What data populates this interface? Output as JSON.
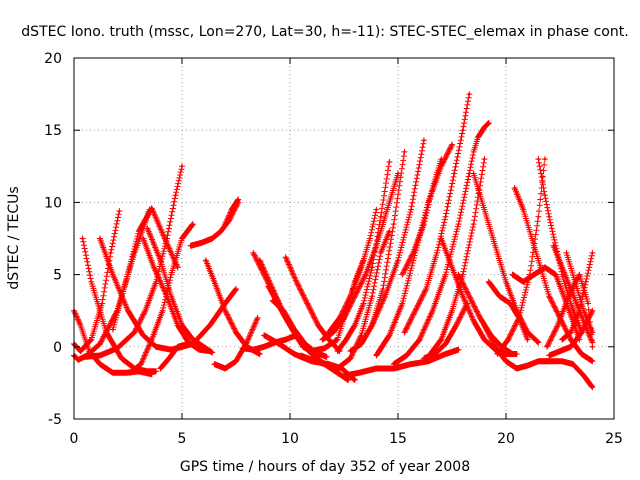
{
  "chart_data": {
    "type": "scatter",
    "title": "dSTEC Iono. truth (mssc, Lon=270, Lat=30, h=-11): STEC-STEC_elemax in phase cont.",
    "xlabel": "GPS time / hours of day 352 of year 2008",
    "ylabel": "dSTEC  / TECUs",
    "xlim": [
      0,
      25
    ],
    "ylim": [
      -5,
      20
    ],
    "xticks": [
      "0",
      "5",
      "10",
      "15",
      "20",
      "25"
    ],
    "yticks": [
      "-5",
      "0",
      "5",
      "10",
      "15",
      "20"
    ],
    "grid": true,
    "marker": "+",
    "color": "#ff0000",
    "series": [
      {
        "x": [
          0.0,
          0.2,
          0.6,
          1.2,
          2.0,
          2.8,
          3.5
        ],
        "y": [
          -0.6,
          -0.9,
          -0.6,
          0.2,
          2.5,
          6.5,
          9.5
        ]
      },
      {
        "x": [
          0.0,
          0.3,
          0.8,
          1.3,
          1.7,
          2.1
        ],
        "y": [
          0.2,
          -0.3,
          0.5,
          3.0,
          6.5,
          9.4
        ]
      },
      {
        "x": [
          0.0,
          0.3,
          0.7,
          1.2,
          1.8,
          2.4,
          3.0,
          3.6
        ],
        "y": [
          2.5,
          1.5,
          -0.3,
          -1.2,
          -1.8,
          -1.8,
          -1.7,
          -1.9
        ]
      },
      {
        "x": [
          0.4,
          0.8,
          1.5,
          2.2,
          2.8,
          3.4,
          3.8
        ],
        "y": [
          7.5,
          4.5,
          1.0,
          -0.8,
          -1.5,
          -1.7,
          -1.7
        ]
      },
      {
        "x": [
          0.5,
          1.2,
          2.0,
          2.8,
          3.3,
          3.8,
          4.3,
          4.7,
          5.0
        ],
        "y": [
          -0.7,
          -0.6,
          -0.1,
          1.0,
          2.5,
          4.5,
          7.5,
          10.5,
          12.5
        ]
      },
      {
        "x": [
          1.2,
          1.8,
          2.5,
          3.2,
          3.8,
          4.5,
          5.5,
          6.3,
          7.0,
          7.5
        ],
        "y": [
          7.5,
          5.0,
          2.5,
          0.8,
          0.0,
          -0.2,
          0.2,
          1.5,
          3.0,
          4.0
        ]
      },
      {
        "x": [
          1.8,
          2.4,
          3.0,
          3.6,
          4.2,
          4.8
        ],
        "y": [
          1.2,
          4.5,
          8.0,
          9.6,
          7.5,
          5.5
        ]
      },
      {
        "x": [
          2.6,
          3.1,
          3.6,
          4.1,
          4.5,
          5.0,
          5.5
        ],
        "y": [
          -1.8,
          -1.2,
          0.5,
          2.5,
          5.0,
          7.5,
          8.5
        ]
      },
      {
        "x": [
          3.2,
          3.7,
          4.3,
          4.8,
          5.3,
          5.8,
          6.3
        ],
        "y": [
          7.5,
          5.5,
          3.5,
          1.5,
          0.3,
          -0.2,
          -0.3
        ]
      },
      {
        "x": [
          4.0,
          4.4,
          4.8,
          5.3
        ],
        "y": [
          -1.5,
          -0.8,
          0.0,
          0.2
        ]
      },
      {
        "x": [
          3.4,
          4.0,
          4.5,
          5.0,
          5.5,
          6.0,
          6.4
        ],
        "y": [
          8.2,
          6.0,
          3.5,
          1.5,
          0.5,
          0.0,
          -0.4
        ]
      },
      {
        "x": [
          6.1,
          6.5,
          7.0,
          7.5,
          8.0,
          8.6
        ],
        "y": [
          6.0,
          4.5,
          2.5,
          1.0,
          0.0,
          -0.5
        ]
      },
      {
        "x": [
          6.5,
          7.0,
          7.5,
          8.0,
          8.5
        ],
        "y": [
          -1.2,
          -1.5,
          -1.0,
          0.3,
          2.0
        ]
      },
      {
        "x": [
          7.0,
          7.3,
          7.6
        ],
        "y": [
          8.5,
          9.5,
          10.2
        ]
      },
      {
        "x": [
          5.4,
          5.9,
          6.4,
          6.8,
          7.2,
          7.6
        ],
        "y": [
          7.0,
          7.2,
          7.5,
          8.0,
          8.8,
          10.0
        ]
      },
      {
        "x": [
          8.3,
          8.8,
          9.3,
          9.8,
          10.3,
          10.8
        ],
        "y": [
          6.5,
          5.0,
          3.5,
          2.0,
          0.8,
          0.0
        ]
      },
      {
        "x": [
          8.6,
          9.2,
          9.8,
          10.4,
          11.0,
          11.6,
          12.2,
          12.7
        ],
        "y": [
          6.0,
          4.0,
          2.0,
          0.5,
          -0.5,
          -1.2,
          -1.8,
          -2.3
        ]
      },
      {
        "x": [
          9.0,
          9.5,
          10.0,
          10.6,
          11.2
        ],
        "y": [
          4.2,
          2.8,
          1.5,
          0.0,
          -0.5
        ]
      },
      {
        "x": [
          7.8,
          8.3,
          8.8,
          9.3,
          9.8,
          10.3
        ],
        "y": [
          -0.1,
          -0.2,
          0.0,
          0.3,
          0.5,
          0.8
        ]
      },
      {
        "x": [
          8.8,
          9.5,
          10.2,
          11.0,
          11.8,
          12.4,
          13.0
        ],
        "y": [
          0.8,
          0.2,
          -0.5,
          -1.0,
          -1.2,
          -1.5,
          -2.3
        ]
      },
      {
        "x": [
          9.2,
          9.7,
          10.2,
          10.7,
          11.2,
          11.7
        ],
        "y": [
          3.2,
          2.5,
          1.2,
          0.2,
          -0.4,
          -0.7
        ]
      },
      {
        "x": [
          9.8,
          10.3,
          10.8,
          11.3,
          11.8,
          12.3
        ],
        "y": [
          6.2,
          4.5,
          3.0,
          1.5,
          0.5,
          -0.3
        ]
      },
      {
        "x": [
          10.5,
          11.0,
          11.6,
          12.2,
          12.8,
          13.3,
          13.8,
          14.2,
          14.6
        ],
        "y": [
          -0.6,
          -0.9,
          -1.2,
          -1.5,
          -0.8,
          0.8,
          3.5,
          6.5,
          8.0
        ]
      },
      {
        "x": [
          11.0,
          11.6,
          12.2,
          12.6,
          13.0,
          13.4
        ],
        "y": [
          -0.3,
          -0.1,
          0.5,
          2.5,
          4.5,
          6.0
        ]
      },
      {
        "x": [
          12.2,
          12.6,
          13.0,
          13.4,
          13.8,
          14.2,
          14.6
        ],
        "y": [
          -0.3,
          0.5,
          1.5,
          3.0,
          5.5,
          9.0,
          12.8
        ]
      },
      {
        "x": [
          11.8,
          12.3,
          12.8,
          13.3,
          13.7,
          14.0
        ],
        "y": [
          1.0,
          2.0,
          3.5,
          5.5,
          7.5,
          9.5
        ]
      },
      {
        "x": [
          11.5,
          12.0,
          12.5,
          13.0,
          13.5,
          14.0,
          14.5,
          15.0
        ],
        "y": [
          0.5,
          1.0,
          2.0,
          3.5,
          5.0,
          7.0,
          9.5,
          12.0
        ]
      },
      {
        "x": [
          12.8,
          13.3,
          13.8,
          14.3,
          14.8,
          15.3
        ],
        "y": [
          -0.3,
          0.2,
          1.5,
          4.0,
          8.5,
          13.5
        ]
      },
      {
        "x": [
          12.5,
          13.2,
          14.0,
          14.8,
          15.6,
          16.4,
          17.2,
          17.8
        ],
        "y": [
          -2.0,
          -1.8,
          -1.5,
          -1.5,
          -1.2,
          -1.0,
          -0.5,
          -0.2
        ]
      },
      {
        "x": [
          13.8,
          14.4,
          15.0,
          15.6,
          16.2
        ],
        "y": [
          1.5,
          3.5,
          6.0,
          9.5,
          14.3
        ]
      },
      {
        "x": [
          14.0,
          14.6,
          15.2,
          15.8,
          16.4,
          17.0,
          17.5
        ],
        "y": [
          -0.6,
          0.8,
          3.0,
          6.5,
          10.0,
          12.5,
          14.0
        ]
      },
      {
        "x": [
          15.2,
          15.7,
          16.2,
          16.6,
          17.0
        ],
        "y": [
          5.0,
          6.5,
          8.5,
          11.0,
          13.0
        ]
      },
      {
        "x": [
          15.3,
          15.8,
          16.3,
          16.8,
          17.2,
          17.6,
          18.0,
          18.3
        ],
        "y": [
          1.0,
          2.5,
          4.0,
          6.5,
          9.0,
          12.0,
          15.0,
          17.5
        ]
      },
      {
        "x": [
          14.8,
          15.4,
          16.0,
          16.6,
          17.2,
          17.8,
          18.3
        ],
        "y": [
          -1.2,
          -0.6,
          0.5,
          2.5,
          5.0,
          8.5,
          12.0
        ]
      },
      {
        "x": [
          16.5,
          17.0,
          17.5,
          18.0,
          18.5,
          19.0
        ],
        "y": [
          -0.5,
          0.5,
          2.5,
          5.0,
          8.5,
          13.0
        ]
      },
      {
        "x": [
          16.2,
          16.7,
          17.2,
          17.7,
          18.2
        ],
        "y": [
          -0.8,
          -0.5,
          0.2,
          1.5,
          3.0
        ]
      },
      {
        "x": [
          18.3,
          18.5,
          18.7,
          19.0,
          19.2
        ],
        "y": [
          12.0,
          13.5,
          14.5,
          15.2,
          15.5
        ]
      },
      {
        "x": [
          17.0,
          17.5,
          18.0,
          18.5,
          19.0,
          19.5,
          20.0,
          20.5
        ],
        "y": [
          7.5,
          5.5,
          3.5,
          1.8,
          0.5,
          -0.2,
          -0.5,
          -0.5
        ]
      },
      {
        "x": [
          17.8,
          18.3,
          18.8,
          19.3,
          19.8,
          20.3
        ],
        "y": [
          5.0,
          3.5,
          2.0,
          0.8,
          0.0,
          -0.5
        ]
      },
      {
        "x": [
          18.5,
          19.0,
          19.5,
          20.0,
          20.5,
          21.0,
          21.5
        ],
        "y": [
          12.0,
          9.5,
          7.0,
          4.5,
          2.5,
          1.0,
          0.3
        ]
      },
      {
        "x": [
          19.0,
          19.5,
          20.0,
          20.5,
          21.0,
          21.5,
          22.0
        ],
        "y": [
          1.5,
          0.0,
          -1.0,
          -1.5,
          -1.3,
          -1.0,
          -1.0
        ]
      },
      {
        "x": [
          19.2,
          19.7,
          20.2,
          20.6,
          21.0
        ],
        "y": [
          4.5,
          3.5,
          3.0,
          2.0,
          0.5
        ]
      },
      {
        "x": [
          19.6,
          20.1,
          20.6,
          21.1,
          21.5,
          21.8
        ],
        "y": [
          -0.5,
          0.5,
          2.0,
          5.0,
          9.0,
          13.0
        ]
      },
      {
        "x": [
          20.3,
          20.8,
          21.3,
          21.8,
          22.3,
          22.8,
          23.4
        ],
        "y": [
          5.0,
          4.5,
          5.0,
          5.5,
          5.0,
          3.0,
          0.5
        ]
      },
      {
        "x": [
          20.4,
          20.8,
          21.2,
          21.6,
          22.0,
          22.5,
          23.0,
          23.5,
          24.0
        ],
        "y": [
          11.0,
          9.5,
          7.5,
          5.5,
          3.5,
          2.0,
          0.5,
          -0.5,
          -1.0
        ]
      },
      {
        "x": [
          21.5,
          21.8,
          22.0,
          22.3,
          22.6,
          23.0,
          23.5
        ],
        "y": [
          13.0,
          10.5,
          9.0,
          7.0,
          5.0,
          3.0,
          1.0
        ]
      },
      {
        "x": [
          21.6,
          22.1,
          22.6,
          23.1,
          23.6,
          24.0
        ],
        "y": [
          -1.0,
          -1.0,
          -1.0,
          -1.2,
          -2.0,
          -2.8
        ]
      },
      {
        "x": [
          21.9,
          22.4,
          22.9,
          23.4,
          23.8,
          24.0
        ],
        "y": [
          0.0,
          1.5,
          3.5,
          5.0,
          3.0,
          0.0
        ]
      },
      {
        "x": [
          22.2,
          22.6,
          23.0,
          23.4,
          23.8,
          24.0
        ],
        "y": [
          7.0,
          5.5,
          4.0,
          2.5,
          1.0,
          0.3
        ]
      },
      {
        "x": [
          22.6,
          23.0,
          23.4,
          23.7,
          24.0
        ],
        "y": [
          0.5,
          1.0,
          2.5,
          4.5,
          6.5
        ]
      },
      {
        "x": [
          22.8,
          23.2,
          23.6,
          24.0
        ],
        "y": [
          6.5,
          4.5,
          2.5,
          1.0
        ]
      },
      {
        "x": [
          22.0,
          22.5,
          23.0,
          23.5,
          24.0
        ],
        "y": [
          -0.6,
          -0.3,
          0.0,
          1.0,
          2.5
        ]
      }
    ]
  }
}
